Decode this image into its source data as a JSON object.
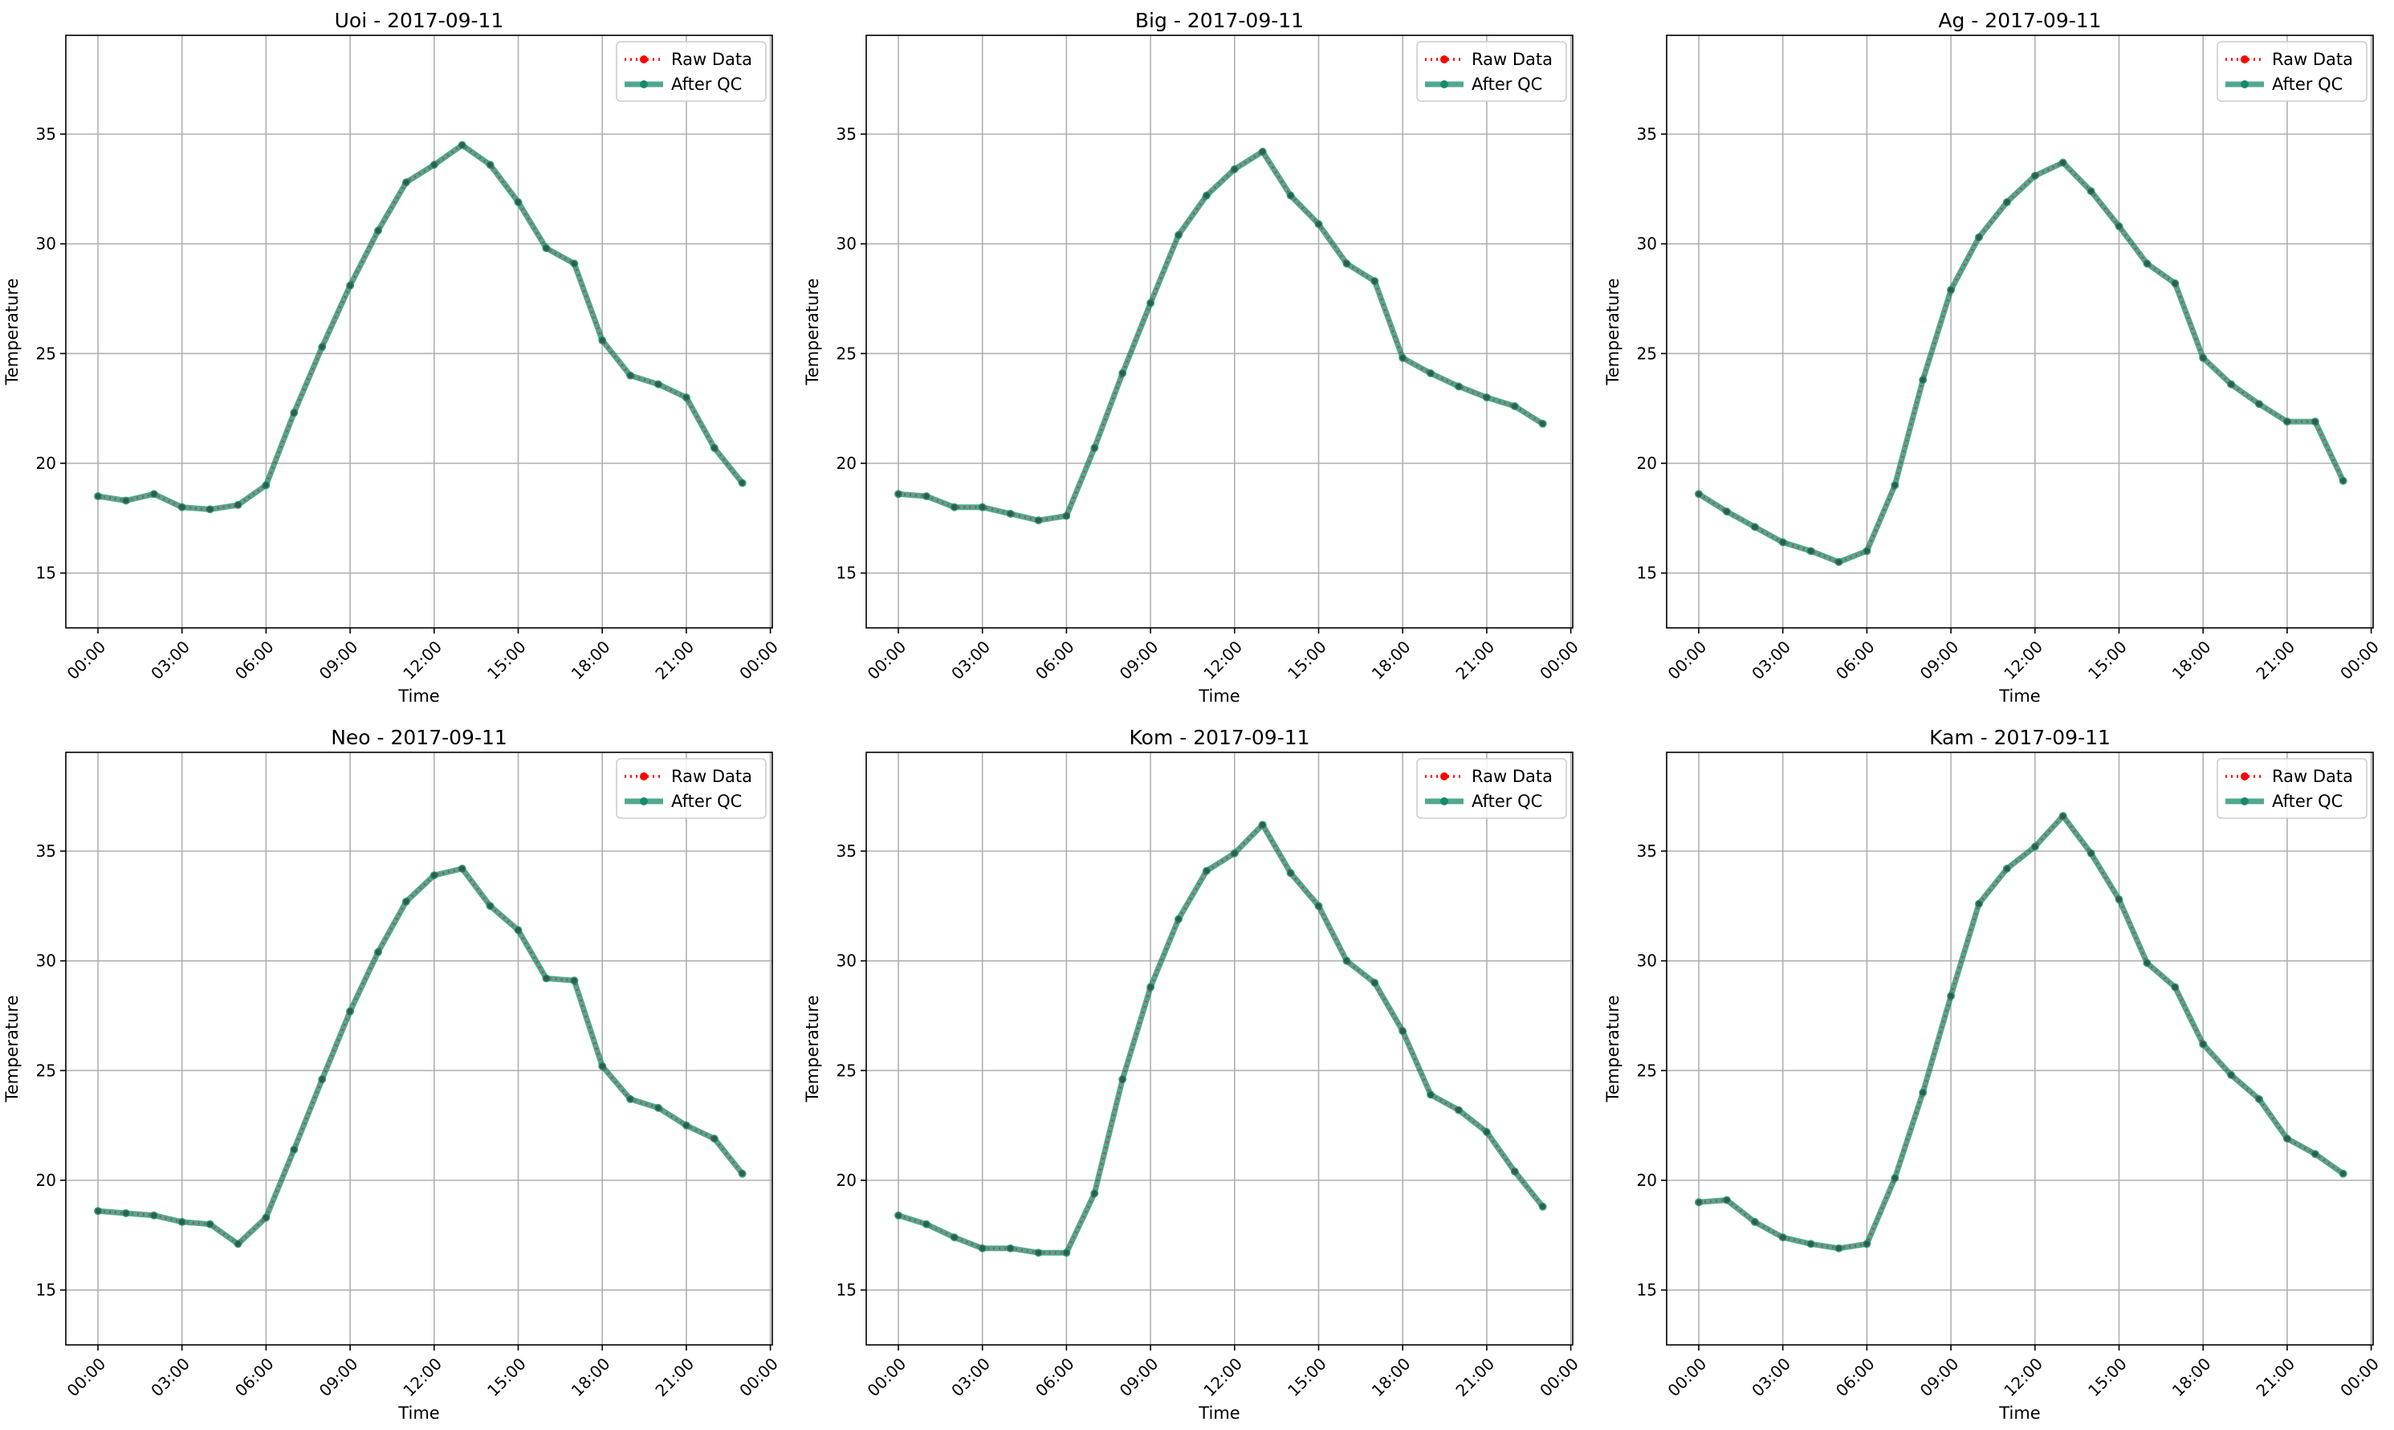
{
  "chart_data": [
    {
      "type": "line",
      "title": "Uoi - 2017-09-11",
      "xlabel": "Time",
      "ylabel": "Temperature",
      "x": [
        "00:00",
        "01:00",
        "02:00",
        "03:00",
        "04:00",
        "05:00",
        "06:00",
        "07:00",
        "08:00",
        "09:00",
        "10:00",
        "11:00",
        "12:00",
        "13:00",
        "14:00",
        "15:00",
        "16:00",
        "17:00",
        "18:00",
        "19:00",
        "20:00",
        "21:00",
        "22:00",
        "23:00"
      ],
      "xticks": [
        "00:00",
        "03:00",
        "06:00",
        "09:00",
        "12:00",
        "15:00",
        "18:00",
        "21:00",
        "00:00"
      ],
      "yticks": [
        "15",
        "20",
        "25",
        "30",
        "35"
      ],
      "ylim": [
        12.5,
        39.5
      ],
      "grid": true,
      "legend": "upper right",
      "series": [
        {
          "name": "Raw Data",
          "color": "#ff0000",
          "style": "dotted",
          "values": [
            18.5,
            18.3,
            18.6,
            18.0,
            17.9,
            18.1,
            19.0,
            22.3,
            25.3,
            28.1,
            30.6,
            32.8,
            33.6,
            34.5,
            33.6,
            31.9,
            29.8,
            29.1,
            25.6,
            24.0,
            23.6,
            23.0,
            20.7,
            19.1
          ]
        },
        {
          "name": "After QC",
          "color": "#158b6a",
          "style": "solid",
          "values": [
            18.5,
            18.3,
            18.6,
            18.0,
            17.9,
            18.1,
            19.0,
            22.3,
            25.3,
            28.1,
            30.6,
            32.8,
            33.6,
            34.5,
            33.6,
            31.9,
            29.8,
            29.1,
            25.6,
            24.0,
            23.6,
            23.0,
            20.7,
            19.1
          ]
        }
      ]
    },
    {
      "type": "line",
      "title": "Big - 2017-09-11",
      "xlabel": "Time",
      "ylabel": "Temperature",
      "x": [
        "00:00",
        "01:00",
        "02:00",
        "03:00",
        "04:00",
        "05:00",
        "06:00",
        "07:00",
        "08:00",
        "09:00",
        "10:00",
        "11:00",
        "12:00",
        "13:00",
        "14:00",
        "15:00",
        "16:00",
        "17:00",
        "18:00",
        "19:00",
        "20:00",
        "21:00",
        "22:00",
        "23:00"
      ],
      "xticks": [
        "00:00",
        "03:00",
        "06:00",
        "09:00",
        "12:00",
        "15:00",
        "18:00",
        "21:00",
        "00:00"
      ],
      "yticks": [
        "15",
        "20",
        "25",
        "30",
        "35"
      ],
      "ylim": [
        12.5,
        39.5
      ],
      "grid": true,
      "legend": "upper right",
      "series": [
        {
          "name": "Raw Data",
          "color": "#ff0000",
          "style": "dotted",
          "values": [
            18.6,
            18.5,
            18.0,
            18.0,
            17.7,
            17.4,
            17.6,
            20.7,
            24.1,
            27.3,
            30.4,
            32.2,
            33.4,
            34.2,
            32.2,
            30.9,
            29.1,
            28.3,
            24.8,
            24.1,
            23.5,
            23.0,
            22.6,
            21.8
          ]
        },
        {
          "name": "After QC",
          "color": "#158b6a",
          "style": "solid",
          "values": [
            18.6,
            18.5,
            18.0,
            18.0,
            17.7,
            17.4,
            17.6,
            20.7,
            24.1,
            27.3,
            30.4,
            32.2,
            33.4,
            34.2,
            32.2,
            30.9,
            29.1,
            28.3,
            24.8,
            24.1,
            23.5,
            23.0,
            22.6,
            21.8
          ]
        }
      ]
    },
    {
      "type": "line",
      "title": "Ag - 2017-09-11",
      "xlabel": "Time",
      "ylabel": "Temperature",
      "x": [
        "00:00",
        "01:00",
        "02:00",
        "03:00",
        "04:00",
        "05:00",
        "06:00",
        "07:00",
        "08:00",
        "09:00",
        "10:00",
        "11:00",
        "12:00",
        "13:00",
        "14:00",
        "15:00",
        "16:00",
        "17:00",
        "18:00",
        "19:00",
        "20:00",
        "21:00",
        "22:00",
        "23:00"
      ],
      "xticks": [
        "00:00",
        "03:00",
        "06:00",
        "09:00",
        "12:00",
        "15:00",
        "18:00",
        "21:00",
        "00:00"
      ],
      "yticks": [
        "15",
        "20",
        "25",
        "30",
        "35"
      ],
      "ylim": [
        12.5,
        39.5
      ],
      "grid": true,
      "legend": "upper right",
      "series": [
        {
          "name": "Raw Data",
          "color": "#ff0000",
          "style": "dotted",
          "values": [
            18.6,
            17.8,
            17.1,
            16.4,
            16.0,
            15.5,
            16.0,
            19.0,
            23.8,
            27.9,
            30.3,
            31.9,
            33.1,
            33.7,
            32.4,
            30.8,
            29.1,
            28.2,
            24.8,
            23.6,
            22.7,
            21.9,
            21.9,
            19.2
          ]
        },
        {
          "name": "After QC",
          "color": "#158b6a",
          "style": "solid",
          "values": [
            18.6,
            17.8,
            17.1,
            16.4,
            16.0,
            15.5,
            16.0,
            19.0,
            23.8,
            27.9,
            30.3,
            31.9,
            33.1,
            33.7,
            32.4,
            30.8,
            29.1,
            28.2,
            24.8,
            23.6,
            22.7,
            21.9,
            21.9,
            19.2
          ]
        }
      ]
    },
    {
      "type": "line",
      "title": "Neo - 2017-09-11",
      "xlabel": "Time",
      "ylabel": "Temperature",
      "x": [
        "00:00",
        "01:00",
        "02:00",
        "03:00",
        "04:00",
        "05:00",
        "06:00",
        "07:00",
        "08:00",
        "09:00",
        "10:00",
        "11:00",
        "12:00",
        "13:00",
        "14:00",
        "15:00",
        "16:00",
        "17:00",
        "18:00",
        "19:00",
        "20:00",
        "21:00",
        "22:00",
        "23:00"
      ],
      "xticks": [
        "00:00",
        "03:00",
        "06:00",
        "09:00",
        "12:00",
        "15:00",
        "18:00",
        "21:00",
        "00:00"
      ],
      "yticks": [
        "15",
        "20",
        "25",
        "30",
        "35"
      ],
      "ylim": [
        12.5,
        39.5
      ],
      "grid": true,
      "legend": "upper right",
      "series": [
        {
          "name": "Raw Data",
          "color": "#ff0000",
          "style": "dotted",
          "values": [
            18.6,
            18.5,
            18.4,
            18.1,
            18.0,
            17.1,
            18.3,
            21.4,
            24.6,
            27.7,
            30.4,
            32.7,
            33.9,
            34.2,
            32.5,
            31.4,
            29.2,
            29.1,
            25.2,
            23.7,
            23.3,
            22.5,
            21.9,
            20.3
          ]
        },
        {
          "name": "After QC",
          "color": "#158b6a",
          "style": "solid",
          "values": [
            18.6,
            18.5,
            18.4,
            18.1,
            18.0,
            17.1,
            18.3,
            21.4,
            24.6,
            27.7,
            30.4,
            32.7,
            33.9,
            34.2,
            32.5,
            31.4,
            29.2,
            29.1,
            25.2,
            23.7,
            23.3,
            22.5,
            21.9,
            20.3
          ]
        }
      ]
    },
    {
      "type": "line",
      "title": "Kom - 2017-09-11",
      "xlabel": "Time",
      "ylabel": "Temperature",
      "x": [
        "00:00",
        "01:00",
        "02:00",
        "03:00",
        "04:00",
        "05:00",
        "06:00",
        "07:00",
        "08:00",
        "09:00",
        "10:00",
        "11:00",
        "12:00",
        "13:00",
        "14:00",
        "15:00",
        "16:00",
        "17:00",
        "18:00",
        "19:00",
        "20:00",
        "21:00",
        "22:00",
        "23:00"
      ],
      "xticks": [
        "00:00",
        "03:00",
        "06:00",
        "09:00",
        "12:00",
        "15:00",
        "18:00",
        "21:00",
        "00:00"
      ],
      "yticks": [
        "15",
        "20",
        "25",
        "30",
        "35"
      ],
      "ylim": [
        12.5,
        39.5
      ],
      "grid": true,
      "legend": "upper right",
      "series": [
        {
          "name": "Raw Data",
          "color": "#ff0000",
          "style": "dotted",
          "values": [
            18.4,
            18.0,
            17.4,
            16.9,
            16.9,
            16.7,
            16.7,
            19.4,
            24.6,
            28.8,
            31.9,
            34.1,
            34.9,
            36.2,
            34.0,
            32.5,
            30.0,
            29.0,
            26.8,
            23.9,
            23.2,
            22.2,
            20.4,
            18.8
          ]
        },
        {
          "name": "After QC",
          "color": "#158b6a",
          "style": "solid",
          "values": [
            18.4,
            18.0,
            17.4,
            16.9,
            16.9,
            16.7,
            16.7,
            19.4,
            24.6,
            28.8,
            31.9,
            34.1,
            34.9,
            36.2,
            34.0,
            32.5,
            30.0,
            29.0,
            26.8,
            23.9,
            23.2,
            22.2,
            20.4,
            18.8
          ]
        }
      ]
    },
    {
      "type": "line",
      "title": "Kam - 2017-09-11",
      "xlabel": "Time",
      "ylabel": "Temperature",
      "x": [
        "00:00",
        "01:00",
        "02:00",
        "03:00",
        "04:00",
        "05:00",
        "06:00",
        "07:00",
        "08:00",
        "09:00",
        "10:00",
        "11:00",
        "12:00",
        "13:00",
        "14:00",
        "15:00",
        "16:00",
        "17:00",
        "18:00",
        "19:00",
        "20:00",
        "21:00",
        "22:00",
        "23:00"
      ],
      "xticks": [
        "00:00",
        "03:00",
        "06:00",
        "09:00",
        "12:00",
        "15:00",
        "18:00",
        "21:00",
        "00:00"
      ],
      "yticks": [
        "15",
        "20",
        "25",
        "30",
        "35"
      ],
      "ylim": [
        12.5,
        39.5
      ],
      "grid": true,
      "legend": "upper right",
      "series": [
        {
          "name": "Raw Data",
          "color": "#ff0000",
          "style": "dotted",
          "values": [
            19.0,
            19.1,
            18.1,
            17.4,
            17.1,
            16.9,
            17.1,
            20.1,
            24.0,
            28.4,
            32.6,
            34.2,
            35.2,
            36.6,
            34.9,
            32.8,
            29.9,
            28.8,
            26.2,
            24.8,
            23.7,
            21.9,
            21.2,
            20.3
          ]
        },
        {
          "name": "After QC",
          "color": "#158b6a",
          "style": "solid",
          "values": [
            19.0,
            19.1,
            18.1,
            17.4,
            17.1,
            16.9,
            17.1,
            20.1,
            24.0,
            28.4,
            32.6,
            34.2,
            35.2,
            36.6,
            34.9,
            32.8,
            29.9,
            28.8,
            26.2,
            24.8,
            23.7,
            21.9,
            21.2,
            20.3
          ]
        }
      ]
    }
  ]
}
